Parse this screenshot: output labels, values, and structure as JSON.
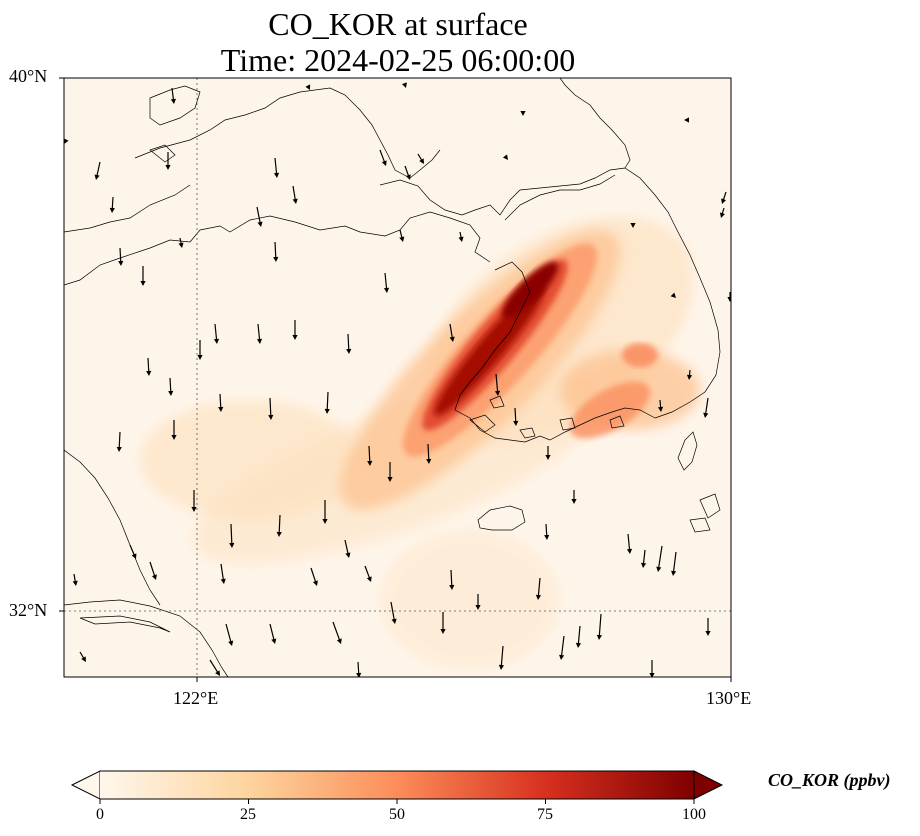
{
  "title": {
    "line1": "CO_KOR at surface",
    "line2": "Time: 2024-02-25 06:00:00"
  },
  "map": {
    "lon_range": [
      120,
      130
    ],
    "lat_range": [
      31,
      40
    ],
    "lat_labels": [
      "40°N",
      "32°N"
    ],
    "lon_labels": [
      "122°E",
      "130°E"
    ],
    "gridlines": {
      "lon": [
        122
      ],
      "lat": [
        32
      ],
      "style": "dotted"
    },
    "plume_peak_ppbv": 100,
    "wind_direction": "mostly from the north (southward arrows)"
  },
  "colorbar": {
    "label": "CO_KOR (ppbv)",
    "ticks": [
      "0",
      "25",
      "50",
      "75",
      "100"
    ],
    "range": [
      0,
      100
    ],
    "colormap": "OrRd",
    "extend": "both",
    "colors": [
      "#fff7ec",
      "#fdd49e",
      "#fc8d59",
      "#d7301f",
      "#7f0000"
    ]
  }
}
